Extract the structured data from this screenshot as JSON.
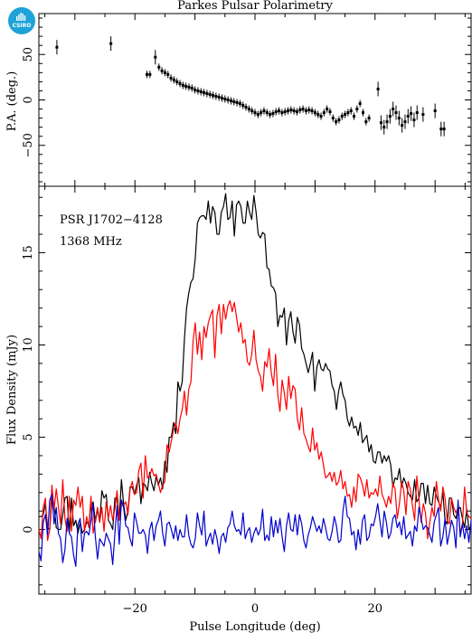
{
  "logo": {
    "text": "CSIRO"
  },
  "chart_data": {
    "type": "line",
    "title": "Parkes Pulsar Polarimetry",
    "pulsar": "PSR J1702−4128",
    "frequency": "1368 MHz",
    "xlabel": "Pulse Longitude (deg)",
    "xlim": [
      -36,
      36
    ],
    "x_ticks": [
      -20,
      0,
      20
    ],
    "pa_panel": {
      "ylabel": "P.A. (deg.)",
      "ylim": [
        -95,
        95
      ],
      "y_ticks": [
        -50,
        0,
        50
      ],
      "points": [
        [
          -33,
          58
        ],
        [
          -24,
          62
        ],
        [
          -18,
          28
        ],
        [
          -17.5,
          28
        ],
        [
          -16.6,
          47
        ],
        [
          -16,
          36
        ],
        [
          -15.5,
          32
        ],
        [
          -15,
          30
        ],
        [
          -14.5,
          28
        ],
        [
          -14,
          24
        ],
        [
          -13.5,
          22
        ],
        [
          -13,
          20
        ],
        [
          -12.5,
          18
        ],
        [
          -12,
          16
        ],
        [
          -11.5,
          15
        ],
        [
          -11,
          14
        ],
        [
          -10.5,
          13
        ],
        [
          -10,
          11
        ],
        [
          -9.5,
          10
        ],
        [
          -9,
          9
        ],
        [
          -8.5,
          8
        ],
        [
          -8,
          7
        ],
        [
          -7.5,
          6
        ],
        [
          -7,
          5
        ],
        [
          -6.5,
          4
        ],
        [
          -6,
          3
        ],
        [
          -5.5,
          2
        ],
        [
          -5,
          1
        ],
        [
          -4.5,
          0
        ],
        [
          -4,
          -1
        ],
        [
          -3.5,
          -2
        ],
        [
          -3,
          -3
        ],
        [
          -2.5,
          -4
        ],
        [
          -2,
          -6
        ],
        [
          -1.5,
          -8
        ],
        [
          -1,
          -10
        ],
        [
          -0.5,
          -12
        ],
        [
          0,
          -14
        ],
        [
          0.5,
          -16
        ],
        [
          1,
          -14
        ],
        [
          1.5,
          -12
        ],
        [
          2,
          -14
        ],
        [
          2.5,
          -16
        ],
        [
          3,
          -15
        ],
        [
          3.5,
          -13
        ],
        [
          4,
          -12
        ],
        [
          4.5,
          -14
        ],
        [
          5,
          -13
        ],
        [
          5.5,
          -12
        ],
        [
          6,
          -11
        ],
        [
          6.5,
          -12
        ],
        [
          7,
          -13
        ],
        [
          7.5,
          -11
        ],
        [
          8,
          -10
        ],
        [
          8.5,
          -12
        ],
        [
          9,
          -11
        ],
        [
          9.5,
          -12
        ],
        [
          10,
          -14
        ],
        [
          10.5,
          -16
        ],
        [
          11,
          -18
        ],
        [
          11.5,
          -14
        ],
        [
          12,
          -10
        ],
        [
          12.5,
          -13
        ],
        [
          13,
          -20
        ],
        [
          13.5,
          -24
        ],
        [
          14,
          -22
        ],
        [
          14.5,
          -18
        ],
        [
          15,
          -16
        ],
        [
          15.5,
          -14
        ],
        [
          16,
          -12
        ],
        [
          16.5,
          -18
        ],
        [
          17,
          -10
        ],
        [
          17.5,
          -4
        ],
        [
          18,
          -14
        ],
        [
          18.5,
          -24
        ],
        [
          19,
          -20
        ],
        [
          20.5,
          12
        ],
        [
          21,
          -25
        ],
        [
          21.5,
          -30
        ],
        [
          22,
          -24
        ],
        [
          22.5,
          -18
        ],
        [
          23,
          -10
        ],
        [
          23.5,
          -14
        ],
        [
          24,
          -20
        ],
        [
          24.5,
          -28
        ],
        [
          25,
          -24
        ],
        [
          25.5,
          -18
        ],
        [
          26,
          -15
        ],
        [
          26.5,
          -22
        ],
        [
          27,
          -14
        ],
        [
          28,
          -16
        ],
        [
          30,
          -12
        ],
        [
          31,
          -32
        ],
        [
          31.5,
          -32
        ]
      ]
    },
    "profile_panel": {
      "ylabel": "Flux Density (mJy)",
      "ylim": [
        -3.5,
        18.6
      ],
      "y_ticks": [
        0,
        5,
        10,
        15
      ],
      "x_range": [
        -36,
        36
      ],
      "series": [
        {
          "color": "#000000",
          "values": [
            0.7,
            0.7,
            0.8,
            1.4,
            0.1,
            0.0,
            1.7,
            1.3,
            0.1,
            0.0,
            0.0,
            0.8,
            1.7,
            1.8,
            -0.2,
            1.7,
            0.2,
            0.5,
            -0.2,
            0.4,
            -0.2,
            0.0,
            0.4,
            0.3,
            1.2,
            1.5,
            0.4,
            1.1,
            0.4,
            2.1,
            1.7,
            1.9,
            0.5,
            0.3,
            0.0,
            1.7,
            1.7,
            0.5,
            2.7,
            1.4,
            0.5,
            1.0,
            2.3,
            2.3,
            1.9,
            2.4,
            2.8,
            1.4,
            2.5,
            2.4,
            2.1,
            3.1,
            2.5,
            2.1,
            2.9,
            2.4,
            2.8,
            2.2,
            3.7,
            3.1,
            5.0,
            5.0,
            5.8,
            5.2,
            8.0,
            7.5,
            8.0,
            10.3,
            12.0,
            12.8,
            13.4,
            13.6,
            14.7,
            16.6,
            16.9,
            17.0,
            17.0,
            16.8,
            17.8,
            16.6,
            17.5,
            17.2,
            16.0,
            16.0,
            17.2,
            17.5,
            18.2,
            16.8,
            16.9,
            17.8,
            15.9,
            17.6,
            17.8,
            17.5,
            16.6,
            16.6,
            17.8,
            17.2,
            16.8,
            18.1,
            17.2,
            16.0,
            15.8,
            16.1,
            16.0,
            14.2,
            14.1,
            13.2,
            13.1,
            12.8,
            11.0,
            11.6,
            11.5,
            12.0,
            10.0,
            11.3,
            11.8,
            10.7,
            10.1,
            11.5,
            11.1,
            9.8,
            9.5,
            9.0,
            8.5,
            9.0,
            9.6,
            7.5,
            8.8,
            9.2,
            8.7,
            8.6,
            9.0,
            8.7,
            8.6,
            7.8,
            7.5,
            6.5,
            7.5,
            8.0,
            7.3,
            7.0,
            6.0,
            5.6,
            6.1,
            5.5,
            5.6,
            5.1,
            5.8,
            4.7,
            4.9,
            5.1,
            4.2,
            4.6,
            3.7,
            3.6,
            4.2,
            4.2,
            3.6,
            4.0,
            3.7,
            4.0,
            3.5,
            2.3,
            2.8,
            2.7,
            3.3,
            2.3,
            2.8,
            2.5,
            2.0,
            1.8,
            1.6,
            2.7,
            1.5,
            1.7,
            2.5,
            2.5,
            1.4,
            2.4,
            1.4,
            1.3,
            2.3,
            1.8,
            1.5,
            1.2,
            2.0,
            0.5,
            0.3,
            1.7,
            1.7,
            0.8,
            0.6,
            1.1,
            1.2,
            0.6,
            0.1,
            1.1,
            0.0,
            0.2
          ]
        },
        {
          "color": "#ff0000",
          "values": [
            0.0,
            -0.5,
            1.2,
            1.7,
            -0.6,
            0.0,
            2.4,
            1.1,
            2.2,
            1.2,
            0.3,
            2.7,
            0.6,
            -0.1,
            1.8,
            -0.1,
            1.6,
            1.3,
            2.3,
            1.2,
            1.8,
            -0.1,
            0.7,
            0.1,
            1.8,
            -0.2,
            0.5,
            1.2,
            0.4,
            1.2,
            -0.1,
            1.5,
            0.6,
            1.3,
            0.5,
            1.1,
            2.1,
            0.5,
            1.3,
            1.3,
            1.5,
            0.8,
            2.2,
            2.6,
            1.9,
            2.0,
            3.2,
            3.6,
            1.7,
            4.0,
            2.8,
            2.9,
            3.3,
            2.9,
            3.0,
            2.5,
            2.0,
            2.4,
            2.6,
            4.6,
            4.2,
            4.8,
            5.4,
            5.8,
            5.2,
            6.0,
            6.5,
            7.5,
            6.2,
            7.6,
            8.0,
            10.2,
            11.2,
            9.5,
            10.7,
            9.2,
            11.0,
            10.4,
            11.2,
            11.6,
            11.9,
            9.3,
            11.6,
            12.2,
            10.6,
            12.2,
            11.4,
            12.1,
            12.4,
            11.8,
            12.3,
            11.5,
            10.7,
            11.2,
            10.1,
            10.3,
            9.1,
            8.9,
            9.5,
            10.8,
            9.2,
            8.6,
            8.3,
            7.5,
            9.1,
            8.8,
            9.8,
            8.5,
            7.8,
            9.5,
            7.3,
            6.4,
            8.1,
            7.4,
            6.5,
            8.3,
            7.1,
            7.8,
            7.6,
            6.0,
            5.4,
            6.6,
            5.2,
            4.9,
            4.5,
            4.2,
            5.5,
            4.3,
            4.7,
            3.8,
            4.2,
            3.5,
            2.8,
            2.9,
            3.1,
            2.6,
            3.1,
            2.4,
            2.6,
            3.2,
            2.2,
            2.6,
            1.8,
            1.9,
            1.2,
            2.3,
            1.5,
            3.0,
            2.8,
            2.4,
            1.8,
            2.7,
            1.7,
            2.0,
            1.9,
            2.2,
            1.8,
            2.9,
            1.9,
            1.6,
            1.2,
            1.8,
            1.4,
            2.5,
            2.2,
            0.6,
            1.4,
            2.6,
            2.1,
            0.8,
            2.6,
            2.2,
            1.3,
            0.5,
            2.9,
            1.6,
            0.4,
            1.4,
            0.9,
            -0.5,
            0.4,
            1.2,
            0.7,
            2.6,
            1.6,
            1.0,
            2.3,
            1.7,
            0.5,
            0.3,
            1.7,
            1.2,
            0.9,
            1.2,
            -0.2,
            0.3,
            2.3,
            0.9,
            0.7,
            0.6
          ]
        },
        {
          "color": "#0000cc",
          "values": [
            -1.2,
            -1.7,
            0.4,
            0.8,
            -0.3,
            1.6,
            1.9,
            0.3,
            1.2,
            -0.2,
            -0.5,
            -1.8,
            -1.1,
            0.6,
            -0.2,
            -0.4,
            -1.4,
            -2.0,
            0.3,
            0.6,
            -1.2,
            -0.2,
            -0.1,
            -0.3,
            0.5,
            1.4,
            -0.4,
            -1.6,
            -0.5,
            -0.7,
            -0.9,
            -0.2,
            -0.5,
            -0.8,
            -1.9,
            -0.2,
            1.3,
            -0.8,
            1.6,
            1.2,
            0.2,
            0.1,
            -0.5,
            -0.9,
            0.9,
            0.4,
            -0.2,
            -0.2,
            0.0,
            -0.3,
            -1.3,
            0.0,
            0.4,
            -0.6,
            0.2,
            0.5,
            1.0,
            -0.2,
            -0.9,
            0.3,
            0.4,
            0.0,
            -0.5,
            0.2,
            -0.6,
            0.0,
            -0.4,
            -0.4,
            0.8,
            -0.3,
            -0.8,
            -1.0,
            -0.5,
            0.9,
            0.2,
            -0.3,
            1.0,
            -0.9,
            -0.5,
            -0.2,
            -0.8,
            0.0,
            -0.5,
            -1.3,
            -0.4,
            -0.2,
            -0.7,
            0.1,
            0.3,
            1.0,
            0.2,
            -0.1,
            0.0,
            -0.3,
            0.9,
            -0.5,
            -0.1,
            0.1,
            -0.7,
            -0.2,
            0.1,
            -0.3,
            0.0,
            1.1,
            -0.6,
            -0.3,
            -0.6,
            0.7,
            -0.4,
            0.5,
            -0.2,
            0.6,
            -0.4,
            -1.2,
            0.2,
            0.9,
            0.0,
            -0.1,
            0.8,
            -0.3,
            0.8,
            0.3,
            -0.6,
            -1.0,
            -0.3,
            0.1,
            0.7,
            0.3,
            -0.1,
            0.2,
            -0.2,
            0.6,
            0.1,
            -0.5,
            -0.6,
            -0.1,
            0.7,
            0.2,
            -0.7,
            -0.6,
            1.0,
            1.8,
            0.7,
            0.6,
            -0.3,
            -0.1,
            -1.1,
            0.0,
            -0.8,
            0.5,
            0.8,
            -0.6,
            -0.4,
            0.3,
            0.2,
            0.7,
            1.4,
            0.5,
            -0.4,
            1.0,
            0.4,
            -0.5,
            -0.2,
            0.6,
            0.8,
            0.1,
            0.4,
            -0.3,
            0.7,
            -0.5,
            -0.3,
            -0.1,
            -0.9,
            0.2,
            -0.1,
            1.2,
            0.6,
            0.0,
            0.2,
            0.1,
            -0.3,
            -0.7,
            0.4,
            0.8,
            1.2,
            -0.9,
            -0.4,
            0.6,
            -0.8,
            -0.2,
            0.5,
            0.1,
            -1.0,
            1.6,
            -0.4,
            0.3,
            -0.5,
            0.2,
            -0.7,
            0.5
          ]
        }
      ]
    }
  }
}
